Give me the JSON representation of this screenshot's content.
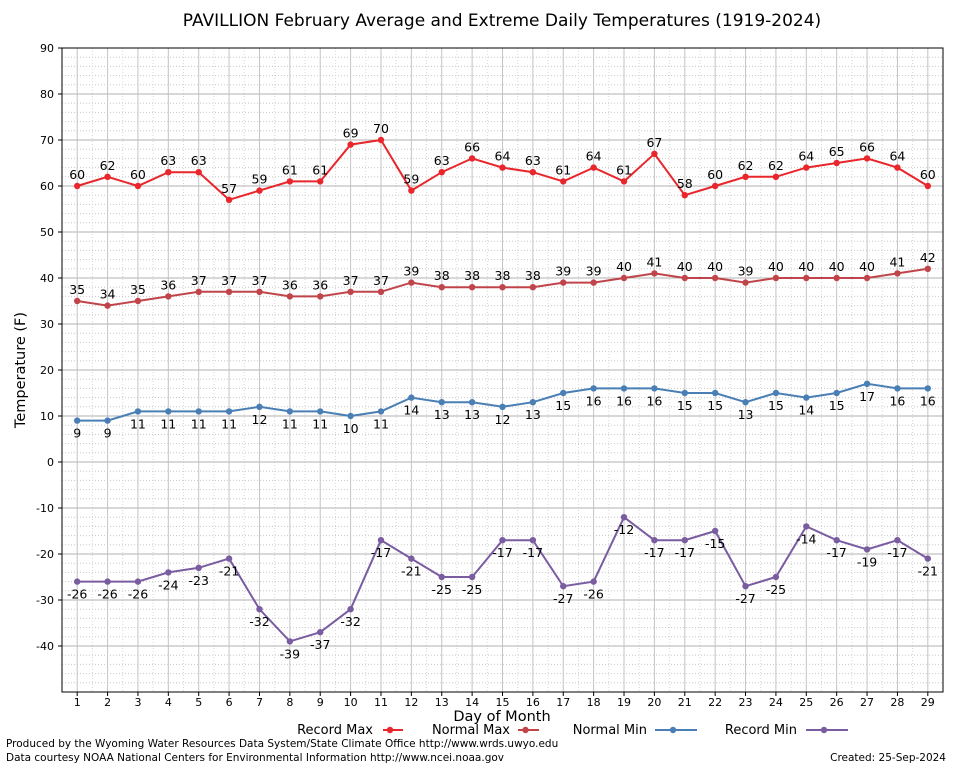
{
  "chart_data": {
    "type": "line",
    "title": "PAVILLION February Average and Extreme Daily Temperatures (1919-2024)",
    "xlabel": "Day of Month",
    "ylabel": "Temperature (F)",
    "x": [
      1,
      2,
      3,
      4,
      5,
      6,
      7,
      8,
      9,
      10,
      11,
      12,
      13,
      14,
      15,
      16,
      17,
      18,
      19,
      20,
      21,
      22,
      23,
      24,
      25,
      26,
      27,
      28,
      29
    ],
    "xlim": [
      0.5,
      29.5
    ],
    "ylim": [
      -50,
      90
    ],
    "yticks": [
      -40,
      -30,
      -20,
      -10,
      0,
      10,
      20,
      30,
      40,
      50,
      60,
      70,
      80,
      90
    ],
    "grid": true,
    "legend_position": "bottom",
    "series": [
      {
        "name": "Record Max",
        "color": "#e8262b",
        "label_position": "above",
        "values": [
          60,
          62,
          60,
          63,
          63,
          57,
          59,
          61,
          61,
          69,
          70,
          59,
          63,
          66,
          64,
          63,
          61,
          64,
          61,
          67,
          58,
          60,
          62,
          62,
          64,
          65,
          66,
          64,
          60
        ]
      },
      {
        "name": "Normal Max",
        "color": "#c0454a",
        "label_position": "above",
        "values": [
          35,
          34,
          35,
          36,
          37,
          37,
          37,
          36,
          36,
          37,
          37,
          39,
          38,
          38,
          38,
          38,
          39,
          39,
          40,
          41,
          40,
          40,
          39,
          40,
          40,
          40,
          40,
          41,
          42
        ]
      },
      {
        "name": "Normal Min",
        "color": "#4a7fb5",
        "label_position": "below",
        "values": [
          9,
          9,
          11,
          11,
          11,
          11,
          12,
          11,
          11,
          10,
          11,
          14,
          13,
          13,
          12,
          13,
          15,
          16,
          16,
          16,
          15,
          15,
          13,
          15,
          14,
          15,
          17,
          16,
          16
        ]
      },
      {
        "name": "Record Min",
        "color": "#7a5ca0",
        "label_position": "below",
        "values": [
          -26,
          -26,
          -26,
          -24,
          -23,
          -21,
          -32,
          -39,
          -37,
          -32,
          -17,
          -21,
          -25,
          -25,
          -17,
          -17,
          -27,
          -26,
          -12,
          -17,
          -17,
          -15,
          -27,
          -25,
          -14,
          -17,
          -19,
          -17,
          -21
        ]
      }
    ]
  },
  "footer": {
    "producer": "Produced by the Wyoming Water Resources Data System/State Climate Office http://www.wrds.uwyo.edu",
    "courtesy": "Data courtesy NOAA National Centers for Environmental Information http://www.ncei.noaa.gov",
    "created": "Created:  25-Sep-2024"
  }
}
